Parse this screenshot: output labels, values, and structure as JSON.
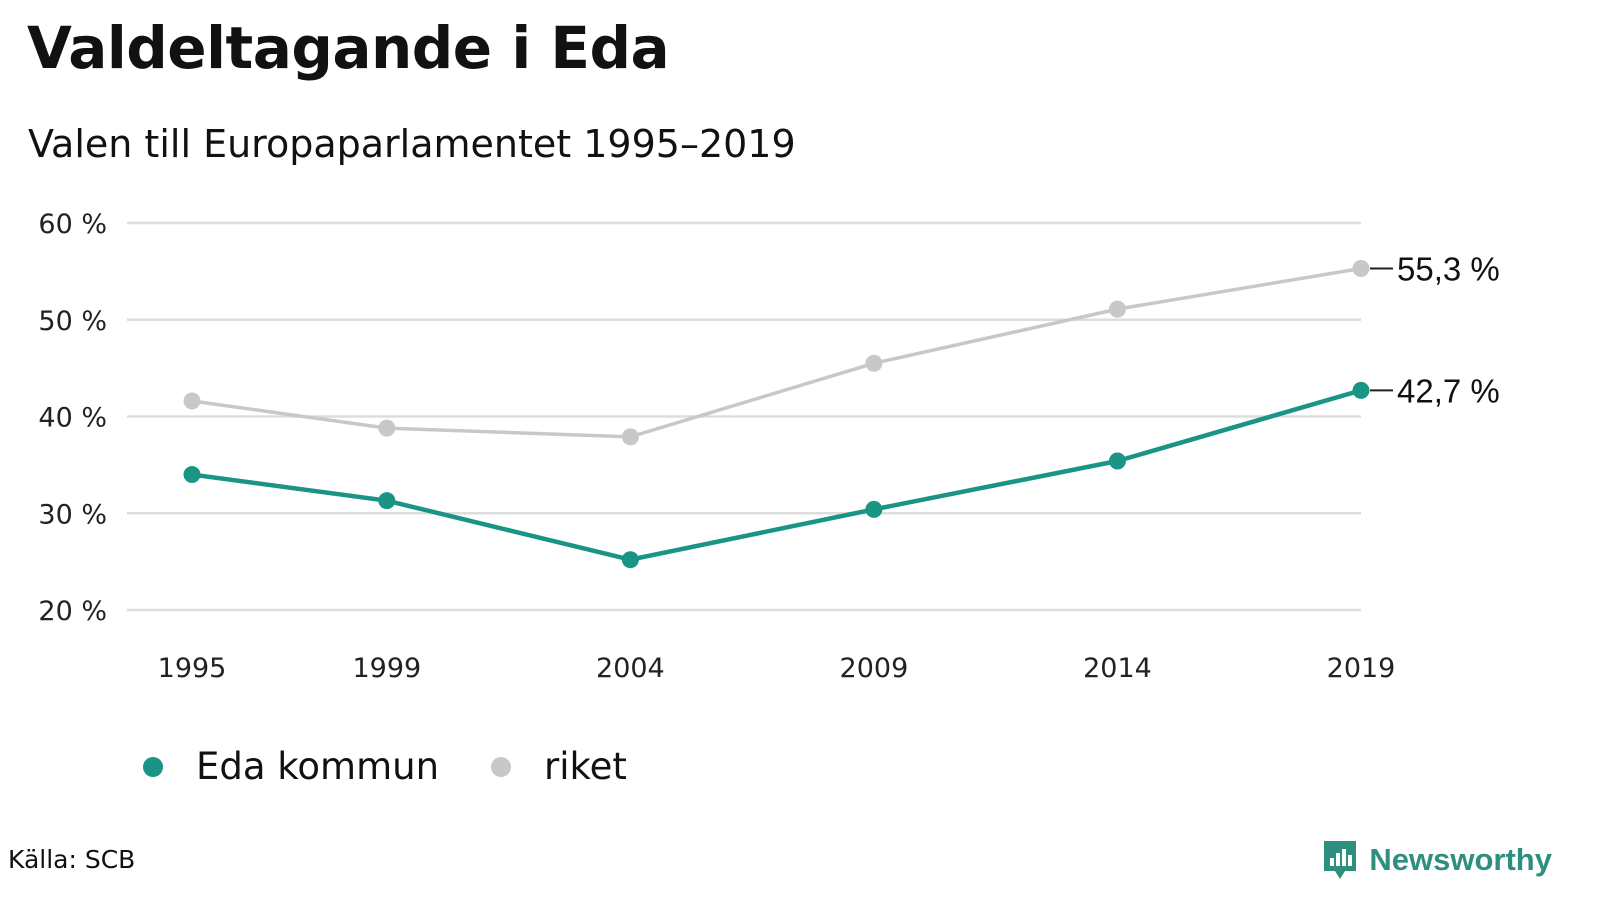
{
  "colors": {
    "eda": "#1a9585",
    "riket": "#c8c8c8",
    "grid": "#dddddd",
    "brand": "#2f8f7f"
  },
  "chart_data": {
    "type": "line",
    "title": "Valdeltagande i Eda",
    "subtitle": "Valen till Europaparlamentet 1995–2019",
    "categories": [
      "1995",
      "1999",
      "2004",
      "2009",
      "2014",
      "2019"
    ],
    "x": [
      1995,
      1999,
      2004,
      2009,
      2014,
      2019
    ],
    "series": [
      {
        "name": "Eda kommun",
        "values": [
          34.0,
          31.3,
          25.2,
          30.4,
          35.4,
          42.7
        ],
        "color": "#1a9585",
        "end_label": "42,7 %"
      },
      {
        "name": "riket",
        "values": [
          41.6,
          38.8,
          37.9,
          45.5,
          51.1,
          55.3
        ],
        "color": "#c8c8c8",
        "end_label": "55,3 %"
      }
    ],
    "y_ticks": [
      {
        "value": 20,
        "label": "20 %"
      },
      {
        "value": 30,
        "label": "30 %"
      },
      {
        "value": 40,
        "label": "40 %"
      },
      {
        "value": 50,
        "label": "50 %"
      },
      {
        "value": 60,
        "label": "60 %"
      }
    ],
    "ylim": [
      20,
      60
    ],
    "xlim": [
      1995,
      2019
    ],
    "xlabel": "",
    "ylabel": "",
    "grid": true,
    "legend_position": "bottom-left"
  },
  "footer": {
    "source": "Källa: SCB",
    "brand": "Newsworthy"
  },
  "icons": {
    "brand": "newsworthy-logo-icon"
  }
}
